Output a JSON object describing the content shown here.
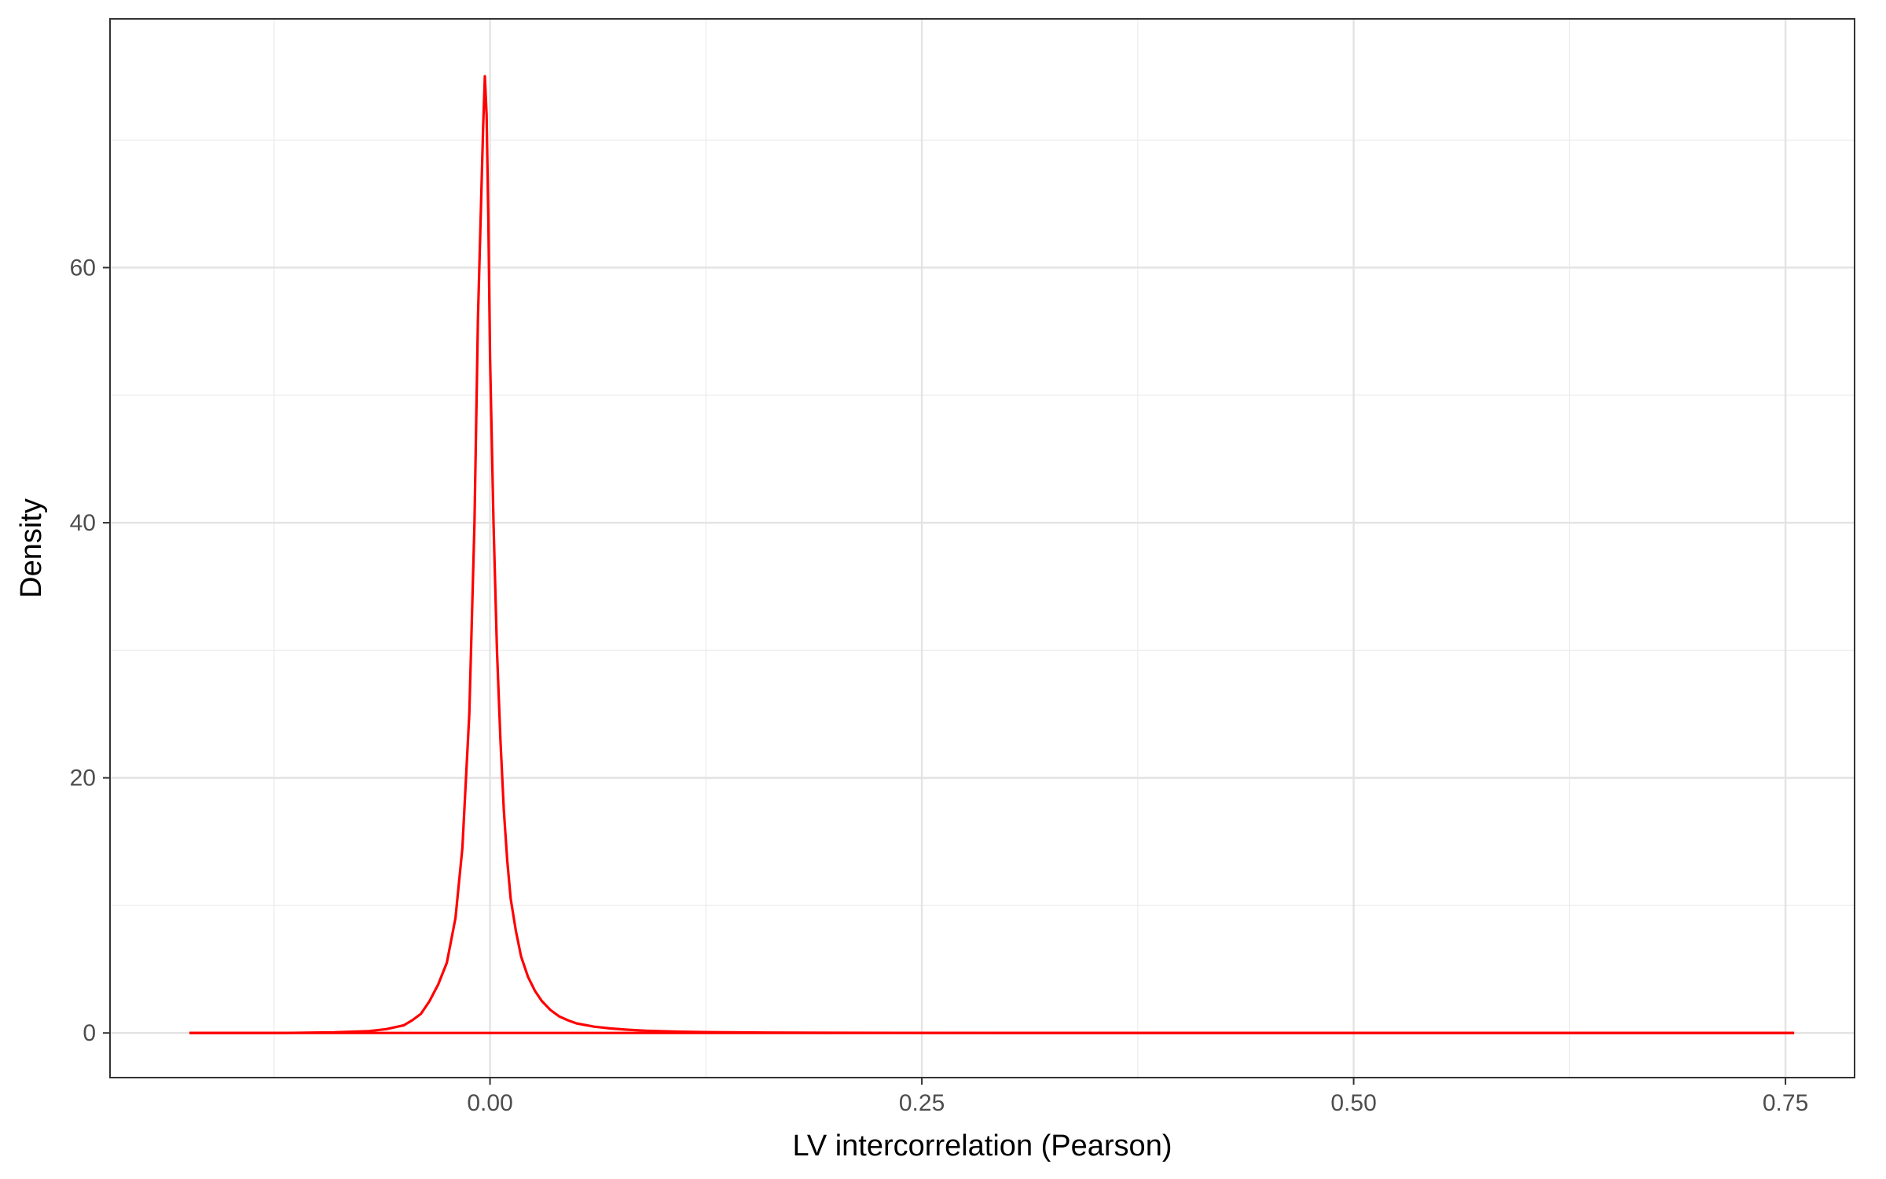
{
  "chart_data": {
    "type": "line",
    "title": "",
    "xlabel": "LV intercorrelation (Pearson)",
    "ylabel": "Density",
    "xlim": [
      -0.22,
      0.79
    ],
    "ylim": [
      -3.5,
      79.5
    ],
    "x_ticks": [
      0.0,
      0.25,
      0.5,
      0.75
    ],
    "x_tick_labels": [
      "0.00",
      "0.25",
      "0.50",
      "0.75"
    ],
    "y_ticks": [
      0,
      20,
      40,
      60
    ],
    "y_tick_labels": [
      "0",
      "20",
      "40",
      "60"
    ],
    "grid": true,
    "legend": "none",
    "theme": "bw",
    "series": [
      {
        "color": "#ff0000",
        "x": [
          -0.174,
          -0.12,
          -0.09,
          -0.07,
          -0.06,
          -0.05,
          -0.045,
          -0.04,
          -0.035,
          -0.03,
          -0.025,
          -0.02,
          -0.016,
          -0.012,
          -0.009,
          -0.007,
          -0.005,
          -0.004,
          -0.003,
          -0.002,
          -0.001,
          0.0,
          0.002,
          0.004,
          0.006,
          0.008,
          0.01,
          0.012,
          0.015,
          0.018,
          0.022,
          0.026,
          0.03,
          0.035,
          0.04,
          0.045,
          0.05,
          0.06,
          0.07,
          0.08,
          0.09,
          0.11,
          0.13,
          0.16,
          0.2,
          0.3,
          0.5,
          0.755
        ],
        "values": [
          0,
          0,
          0.05,
          0.15,
          0.3,
          0.6,
          1.0,
          1.5,
          2.5,
          3.8,
          5.5,
          9.0,
          14.5,
          25.0,
          40.0,
          56.0,
          66.0,
          71.0,
          75.0,
          72.0,
          64.0,
          53.0,
          40.0,
          30.0,
          23.0,
          17.5,
          13.5,
          10.5,
          8.0,
          6.0,
          4.4,
          3.3,
          2.5,
          1.8,
          1.3,
          1.0,
          0.75,
          0.5,
          0.35,
          0.25,
          0.18,
          0.1,
          0.06,
          0.03,
          0.01,
          0,
          0,
          0
        ]
      },
      {
        "color": "#ff0000",
        "x": [
          -0.174,
          0.755
        ],
        "values": [
          0,
          0
        ]
      }
    ]
  }
}
